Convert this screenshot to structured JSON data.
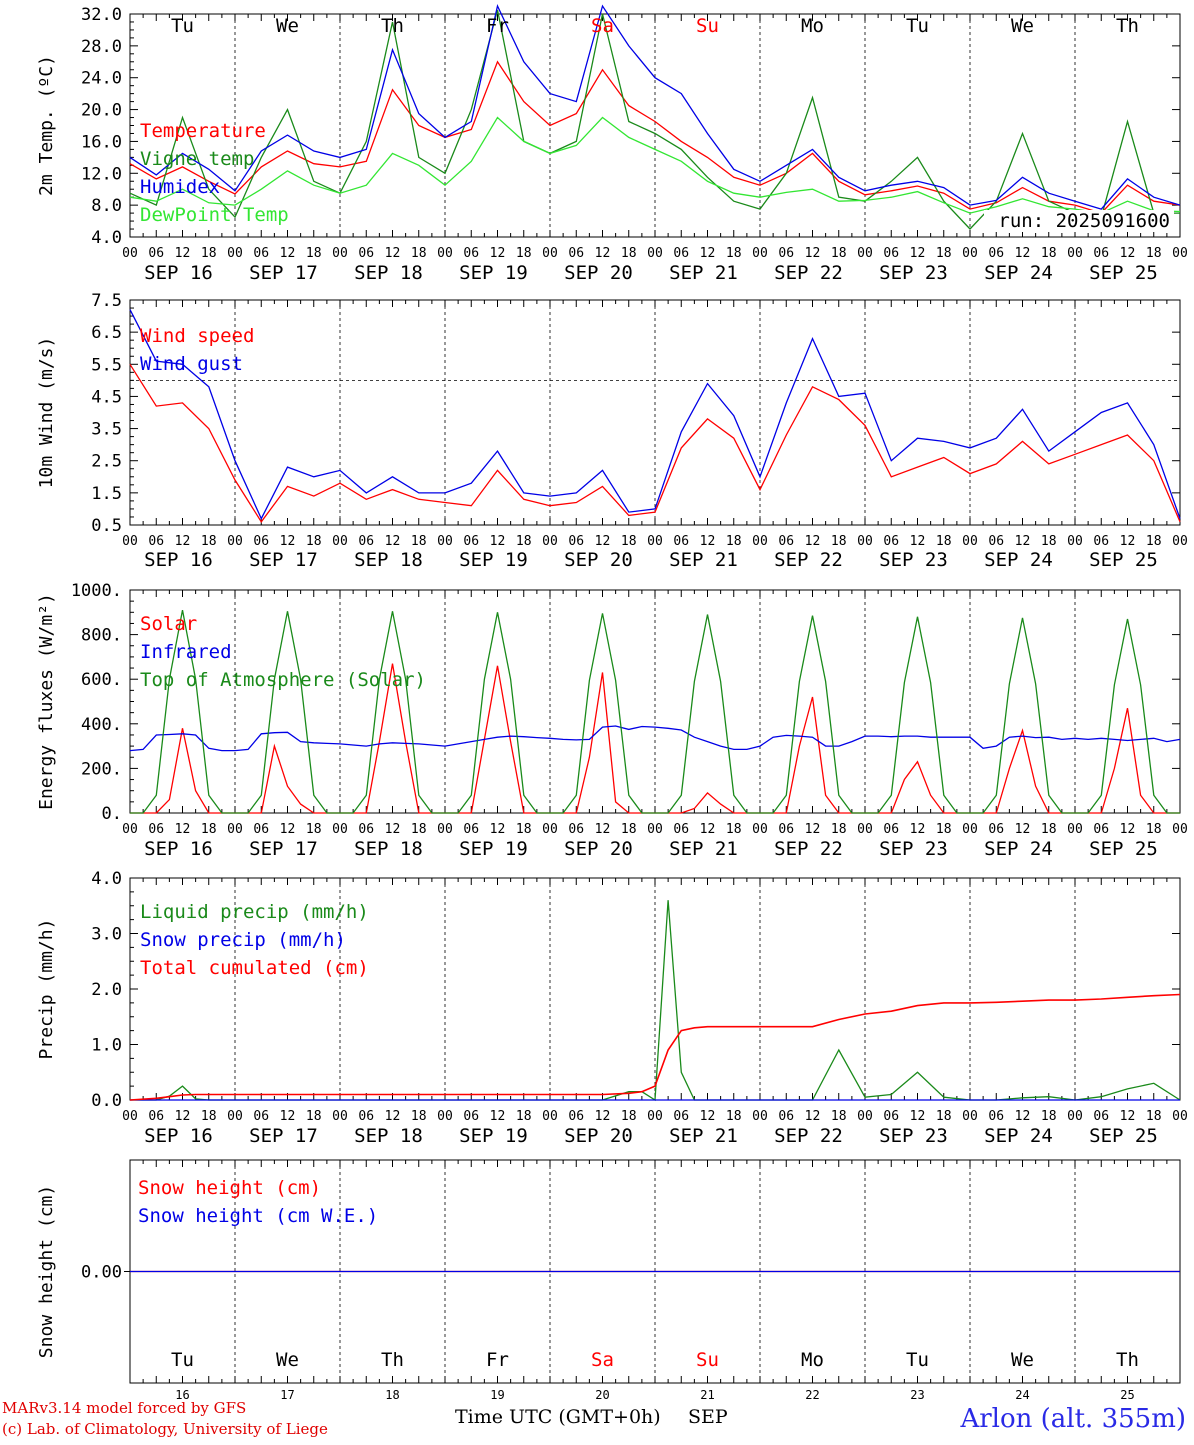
{
  "run_label": "run: 2025091600",
  "footer": {
    "model_line1": "MARv3.14 model forced by GFS",
    "model_line2": "(c) Lab. of Climatology, University of Liege",
    "time_axis": "Time UTC (GMT+0h)",
    "month": "SEP",
    "station": "Arlon (alt. 355m)"
  },
  "colors": {
    "red": "#ff0000",
    "green": "#1a8a1a",
    "light_green": "#33e633",
    "blue": "#0000e6",
    "station_blue": "#2a2ae6"
  },
  "days": {
    "weekdays": [
      "Tu",
      "We",
      "Th",
      "Fr",
      "Sa",
      "Su",
      "Mo",
      "Tu",
      "We",
      "Th"
    ],
    "weekend_highlight": [
      false,
      false,
      false,
      false,
      true,
      true,
      false,
      false,
      false,
      false
    ],
    "dates": [
      "SEP 16",
      "SEP 17",
      "SEP 18",
      "SEP 19",
      "SEP 20",
      "SEP 21",
      "SEP 22",
      "SEP 23",
      "SEP 24",
      "SEP 25"
    ],
    "day_numbers": [
      "16",
      "17",
      "18",
      "19",
      "20",
      "21",
      "22",
      "23",
      "24",
      "25"
    ],
    "hour_ticks": [
      "00",
      "06",
      "12",
      "18"
    ],
    "final_hour_tick": "00"
  },
  "chart_data": [
    {
      "type": "line",
      "ylabel": "2m Temp. (ºC)",
      "ylim": [
        4.0,
        32.0
      ],
      "ytick_labels": [
        "4.0",
        "8.0",
        "12.0",
        "16.0",
        "20.0",
        "24.0",
        "28.0",
        "32.0"
      ],
      "x_hours": [
        0,
        6,
        12,
        18,
        24,
        30,
        36,
        42,
        48,
        54,
        60,
        66,
        72,
        78,
        84,
        90,
        96,
        102,
        108,
        114,
        120,
        126,
        132,
        138,
        144,
        150,
        156,
        162,
        168,
        174,
        180,
        186,
        192,
        198,
        204,
        210,
        216,
        222,
        228,
        234,
        240
      ],
      "series": [
        {
          "name": "Temperature",
          "color": "#ff0000",
          "values": [
            13.2,
            11.3,
            12.8,
            11.0,
            9.4,
            12.8,
            14.8,
            13.2,
            12.8,
            13.5,
            22.5,
            18.0,
            16.5,
            17.5,
            26.0,
            21.0,
            18.0,
            19.5,
            25.0,
            20.5,
            18.5,
            16.0,
            14.0,
            11.5,
            10.5,
            12.0,
            14.5,
            11.0,
            9.3,
            9.8,
            10.4,
            9.5,
            7.5,
            8.3,
            10.2,
            8.5,
            8.0,
            7.0,
            10.5,
            8.5,
            8.0
          ]
        },
        {
          "name": "Vigne temp",
          "color": "#1a8a1a",
          "values": [
            9.5,
            8.0,
            19.0,
            10.0,
            6.5,
            14.0,
            20.0,
            11.0,
            9.5,
            16.0,
            31.0,
            14.0,
            12.0,
            20.0,
            32.5,
            16.0,
            14.5,
            16.0,
            32.0,
            18.5,
            17.0,
            15.0,
            11.5,
            8.5,
            7.5,
            12.0,
            21.5,
            9.0,
            8.5,
            11.0,
            14.0,
            8.5,
            5.0,
            8.5,
            17.0,
            8.5,
            7.0,
            6.5,
            18.5,
            7.0,
            7.0
          ]
        },
        {
          "name": "Humidex",
          "color": "#0000e6",
          "values": [
            14.0,
            11.8,
            14.5,
            12.5,
            9.8,
            14.8,
            16.8,
            14.8,
            14.0,
            15.0,
            27.5,
            19.5,
            16.5,
            18.5,
            33.0,
            26.0,
            22.0,
            21.0,
            33.0,
            28.0,
            24.0,
            22.0,
            17.0,
            12.5,
            11.0,
            13.0,
            15.0,
            11.5,
            9.8,
            10.5,
            11.0,
            10.2,
            8.0,
            8.6,
            11.5,
            9.5,
            8.5,
            7.5,
            11.3,
            9.0,
            8.0
          ]
        },
        {
          "name": "DewPoint Temp",
          "color": "#33e633",
          "values": [
            9.0,
            8.5,
            10.0,
            8.3,
            8.0,
            10.0,
            12.3,
            10.5,
            9.5,
            10.5,
            14.5,
            13.0,
            10.5,
            13.5,
            19.0,
            16.0,
            14.5,
            15.5,
            19.0,
            16.5,
            15.0,
            13.5,
            11.0,
            9.5,
            9.0,
            9.6,
            10.0,
            8.5,
            8.6,
            9.0,
            9.7,
            8.3,
            7.0,
            7.8,
            8.8,
            7.8,
            7.5,
            7.0,
            8.5,
            7.3,
            7.2
          ]
        }
      ]
    },
    {
      "type": "line",
      "ylabel": "10m Wind (m/s)",
      "ylim": [
        0.5,
        7.5
      ],
      "ytick_labels": [
        "0.5",
        "1.5",
        "2.5",
        "3.5",
        "4.5",
        "5.5",
        "6.5",
        "7.5"
      ],
      "reference_line": 5.0,
      "x_hours": [
        0,
        6,
        12,
        18,
        24,
        30,
        36,
        42,
        48,
        54,
        60,
        66,
        72,
        78,
        84,
        90,
        96,
        102,
        108,
        114,
        120,
        126,
        132,
        138,
        144,
        150,
        156,
        162,
        168,
        174,
        180,
        186,
        192,
        198,
        204,
        210,
        216,
        222,
        228,
        234,
        240
      ],
      "series": [
        {
          "name": "Wind speed",
          "color": "#ff0000",
          "values": [
            5.5,
            4.2,
            4.3,
            3.5,
            1.9,
            0.6,
            1.7,
            1.4,
            1.8,
            1.3,
            1.6,
            1.3,
            1.2,
            1.1,
            2.2,
            1.3,
            1.1,
            1.2,
            1.7,
            0.8,
            0.9,
            2.9,
            3.8,
            3.2,
            1.6,
            3.3,
            4.8,
            4.4,
            3.6,
            2.0,
            2.3,
            2.6,
            2.1,
            2.4,
            3.1,
            2.4,
            2.7,
            3.0,
            3.3,
            2.5,
            0.6
          ]
        },
        {
          "name": "Wind gust",
          "color": "#0000e6",
          "values": [
            7.2,
            5.6,
            5.5,
            4.8,
            2.5,
            0.7,
            2.3,
            2.0,
            2.2,
            1.5,
            2.0,
            1.5,
            1.5,
            1.8,
            2.8,
            1.5,
            1.4,
            1.5,
            2.2,
            0.9,
            1.0,
            3.4,
            4.9,
            3.9,
            2.0,
            4.3,
            6.3,
            4.5,
            4.6,
            2.5,
            3.2,
            3.1,
            2.9,
            3.2,
            4.1,
            2.8,
            3.4,
            4.0,
            4.3,
            3.0,
            0.7
          ]
        }
      ]
    },
    {
      "type": "line",
      "ylabel": "Energy fluxes (W/m²)",
      "ylim": [
        0,
        1000
      ],
      "ytick_labels": [
        "0.",
        "200.",
        "400.",
        "600.",
        "800.",
        "1000."
      ],
      "x_hours": [
        0,
        3,
        6,
        9,
        12,
        15,
        18,
        21,
        24,
        27,
        30,
        33,
        36,
        39,
        42,
        45,
        48,
        51,
        54,
        57,
        60,
        63,
        66,
        69,
        72,
        75,
        78,
        81,
        84,
        87,
        90,
        93,
        96,
        99,
        102,
        105,
        108,
        111,
        114,
        117,
        120,
        123,
        126,
        129,
        132,
        135,
        138,
        141,
        144,
        147,
        150,
        153,
        156,
        159,
        162,
        165,
        168,
        171,
        174,
        177,
        180,
        183,
        186,
        189,
        192,
        195,
        198,
        201,
        204,
        207,
        210,
        213,
        216,
        219,
        222,
        225,
        228,
        231,
        234,
        237,
        240
      ],
      "series": [
        {
          "name": "Solar",
          "color": "#ff0000",
          "values": [
            0,
            0,
            0,
            60,
            380,
            100,
            0,
            0,
            0,
            0,
            0,
            300,
            120,
            40,
            0,
            0,
            0,
            0,
            0,
            320,
            670,
            320,
            0,
            0,
            0,
            0,
            0,
            330,
            660,
            320,
            0,
            0,
            0,
            0,
            0,
            250,
            630,
            50,
            0,
            0,
            0,
            0,
            0,
            20,
            90,
            40,
            0,
            0,
            0,
            0,
            0,
            300,
            520,
            80,
            0,
            0,
            0,
            0,
            0,
            150,
            230,
            80,
            0,
            0,
            0,
            0,
            0,
            200,
            370,
            120,
            0,
            0,
            0,
            0,
            0,
            200,
            470,
            80,
            0,
            0,
            0
          ]
        },
        {
          "name": "Infrared",
          "color": "#0000e6",
          "values": [
            280,
            285,
            350,
            352,
            355,
            350,
            290,
            280,
            280,
            285,
            355,
            360,
            362,
            320,
            315,
            312,
            310,
            305,
            300,
            310,
            315,
            312,
            310,
            305,
            300,
            310,
            320,
            330,
            340,
            345,
            342,
            338,
            335,
            330,
            328,
            330,
            385,
            390,
            375,
            388,
            385,
            380,
            372,
            340,
            320,
            300,
            285,
            285,
            300,
            340,
            348,
            345,
            340,
            300,
            300,
            320,
            345,
            345,
            342,
            345,
            345,
            340,
            340,
            340,
            340,
            290,
            300,
            340,
            345,
            338,
            340,
            330,
            335,
            330,
            335,
            330,
            325,
            330,
            335,
            320,
            330
          ]
        },
        {
          "name": "Top of Atmosphere (Solar)",
          "color": "#1a8a1a",
          "values": [
            0,
            0,
            80,
            600,
            910,
            600,
            80,
            0,
            0,
            0,
            80,
            600,
            905,
            600,
            80,
            0,
            0,
            0,
            80,
            600,
            905,
            600,
            80,
            0,
            0,
            0,
            80,
            600,
            900,
            600,
            80,
            0,
            0,
            0,
            80,
            595,
            895,
            595,
            80,
            0,
            0,
            0,
            80,
            590,
            890,
            590,
            80,
            0,
            0,
            0,
            80,
            590,
            885,
            590,
            80,
            0,
            0,
            0,
            80,
            585,
            880,
            585,
            80,
            0,
            0,
            0,
            80,
            580,
            875,
            580,
            80,
            0,
            0,
            0,
            80,
            575,
            870,
            575,
            80,
            0,
            0
          ]
        }
      ]
    },
    {
      "type": "line",
      "ylabel": "Precip (mm/h)",
      "ylim": [
        0,
        4.0
      ],
      "ytick_labels": [
        "0.0",
        "1.0",
        "2.0",
        "3.0",
        "4.0"
      ],
      "x_hours": [
        0,
        6,
        9,
        12,
        15,
        18,
        24,
        48,
        72,
        96,
        108,
        114,
        117,
        120,
        123,
        126,
        129,
        132,
        138,
        144,
        156,
        162,
        168,
        174,
        180,
        186,
        192,
        198,
        204,
        210,
        216,
        222,
        228,
        234,
        240
      ],
      "series": [
        {
          "name": "Liquid precip (mm/h)",
          "color": "#1a8a1a",
          "values": [
            0,
            0,
            0.07,
            0.25,
            0.02,
            0,
            0,
            0,
            0,
            0,
            0,
            0.15,
            0.15,
            0,
            3.6,
            0.5,
            0,
            0,
            0,
            0,
            0,
            0.9,
            0.05,
            0.1,
            0.5,
            0.05,
            0,
            0,
            0.04,
            0.06,
            0,
            0.06,
            0.2,
            0.3,
            0
          ]
        },
        {
          "name": "Snow precip (mm/h)",
          "color": "#0000e6",
          "values": [
            0,
            0,
            0,
            0,
            0,
            0,
            0,
            0,
            0,
            0,
            0,
            0,
            0,
            0,
            0,
            0,
            0,
            0,
            0,
            0,
            0,
            0,
            0,
            0,
            0,
            0,
            0,
            0,
            0,
            0,
            0,
            0,
            0,
            0,
            0
          ]
        },
        {
          "name": "Total cumulated (cm)",
          "color": "#ff0000",
          "values": [
            0,
            0.03,
            0.06,
            0.09,
            0.1,
            0.1,
            0.1,
            0.1,
            0.1,
            0.1,
            0.1,
            0.12,
            0.15,
            0.25,
            0.9,
            1.25,
            1.3,
            1.32,
            1.32,
            1.32,
            1.32,
            1.45,
            1.55,
            1.6,
            1.7,
            1.75,
            1.75,
            1.76,
            1.78,
            1.8,
            1.8,
            1.82,
            1.85,
            1.88,
            1.9
          ]
        }
      ]
    },
    {
      "type": "line",
      "ylabel": "Snow height (cm)",
      "ytick_labels": [
        "0.00"
      ],
      "x_hours": [
        0,
        240
      ],
      "series": [
        {
          "name": "Snow height (cm)",
          "color": "#ff0000",
          "values": [
            0,
            0
          ]
        },
        {
          "name": "Snow height (cm W.E.)",
          "color": "#0000e6",
          "values": [
            0,
            0
          ]
        }
      ]
    }
  ]
}
